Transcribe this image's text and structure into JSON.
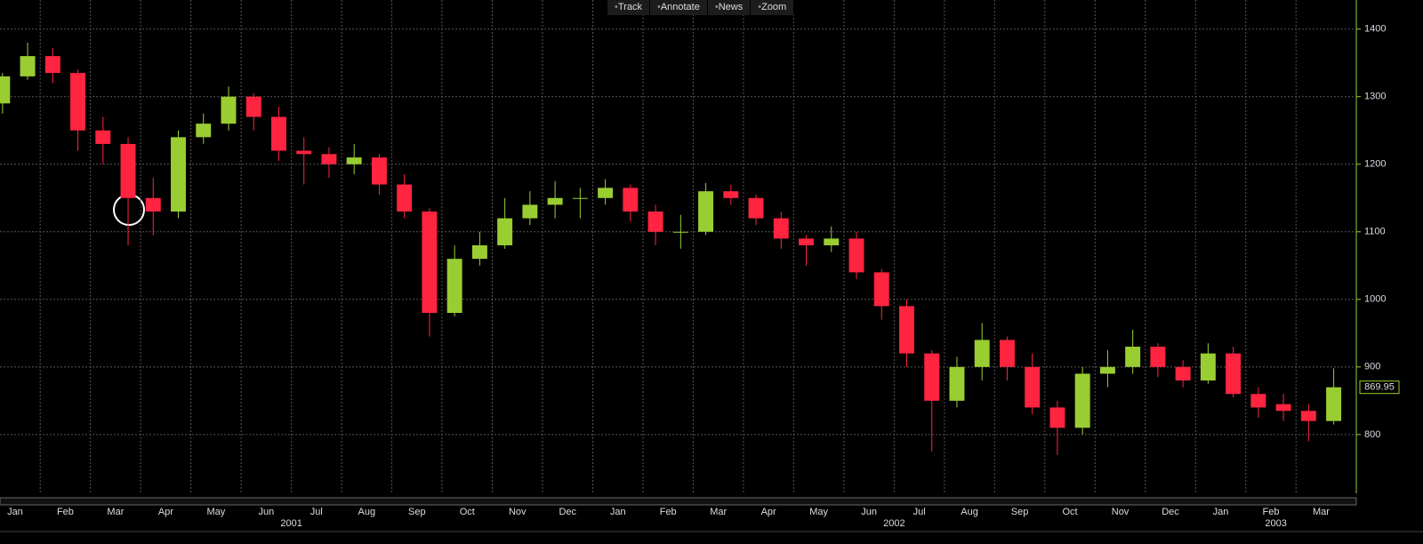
{
  "toolbar": [
    "Track",
    "Annotate",
    "News",
    "Zoom"
  ],
  "chart_data": {
    "type": "candlestick",
    "up_color": "#9acd32",
    "down_color": "#ff2440",
    "grid": true,
    "x": [
      0.25,
      0.75,
      1.25,
      1.75,
      2.25,
      2.75,
      3.25,
      3.75,
      4.25,
      4.75,
      5.25,
      5.75,
      6.25,
      6.75,
      7.25,
      7.75,
      8.25,
      8.75,
      9.25,
      9.75,
      10.25,
      10.75,
      11.25,
      11.75,
      12.25,
      12.75,
      13.25,
      13.75,
      14.25,
      14.75,
      15.25,
      15.75,
      16.25,
      16.75,
      17.25,
      17.75,
      18.25,
      18.75,
      19.25,
      19.75,
      20.25,
      20.75,
      21.25,
      21.75,
      22.25,
      22.75,
      23.25,
      23.75,
      24.25,
      24.75,
      25.25,
      25.75,
      26.25,
      26.75
    ],
    "open": [
      1290,
      1330,
      1360,
      1335,
      1250,
      1230,
      1150,
      1130,
      1240,
      1260,
      1300,
      1270,
      1220,
      1215,
      1200,
      1210,
      1170,
      1130,
      980,
      1060,
      1080,
      1120,
      1140,
      1150,
      1150,
      1165,
      1130,
      1100,
      1100,
      1160,
      1150,
      1120,
      1090,
      1080,
      1090,
      1040,
      990,
      920,
      850,
      900,
      940,
      900,
      840,
      810,
      890,
      900,
      930,
      900,
      880,
      920,
      860,
      845,
      835,
      820
    ],
    "high": [
      1335,
      1380,
      1372,
      1340,
      1270,
      1240,
      1180,
      1250,
      1275,
      1315,
      1305,
      1285,
      1240,
      1225,
      1230,
      1215,
      1185,
      1135,
      1080,
      1100,
      1150,
      1160,
      1175,
      1165,
      1178,
      1170,
      1140,
      1125,
      1172,
      1170,
      1155,
      1130,
      1095,
      1108,
      1100,
      1045,
      1000,
      925,
      915,
      965,
      945,
      920,
      850,
      900,
      925,
      955,
      935,
      910,
      935,
      930,
      870,
      860,
      845,
      898
    ],
    "low": [
      1275,
      1325,
      1320,
      1220,
      1200,
      1080,
      1095,
      1120,
      1230,
      1250,
      1250,
      1205,
      1170,
      1180,
      1185,
      1155,
      1120,
      945,
      975,
      1050,
      1075,
      1110,
      1120,
      1120,
      1140,
      1115,
      1080,
      1075,
      1095,
      1140,
      1110,
      1075,
      1050,
      1070,
      1030,
      970,
      900,
      775,
      840,
      880,
      880,
      830,
      770,
      800,
      870,
      890,
      885,
      870,
      875,
      855,
      825,
      820,
      790,
      815
    ],
    "close": [
      1330,
      1360,
      1335,
      1250,
      1230,
      1150,
      1130,
      1240,
      1260,
      1300,
      1270,
      1220,
      1215,
      1200,
      1210,
      1170,
      1130,
      980,
      1060,
      1080,
      1120,
      1140,
      1150,
      1150,
      1165,
      1130,
      1100,
      1100,
      1160,
      1150,
      1120,
      1090,
      1080,
      1090,
      1040,
      990,
      920,
      850,
      900,
      940,
      900,
      840,
      810,
      890,
      900,
      930,
      900,
      880,
      920,
      860,
      840,
      835,
      820,
      869.95
    ],
    "xlim": [
      0.2,
      27.2
    ],
    "xticks": [
      {
        "value": 0,
        "label": "Jan"
      },
      {
        "value": 1,
        "label": "Feb"
      },
      {
        "value": 2,
        "label": "Mar"
      },
      {
        "value": 3,
        "label": "Apr"
      },
      {
        "value": 4,
        "label": "May"
      },
      {
        "value": 5,
        "label": "Jun"
      },
      {
        "value": 6,
        "label": "Jul"
      },
      {
        "value": 7,
        "label": "Aug"
      },
      {
        "value": 8,
        "label": "Sep"
      },
      {
        "value": 9,
        "label": "Oct"
      },
      {
        "value": 10,
        "label": "Nov"
      },
      {
        "value": 11,
        "label": "Dec"
      },
      {
        "value": 12,
        "label": "Jan"
      },
      {
        "value": 13,
        "label": "Feb"
      },
      {
        "value": 14,
        "label": "Mar"
      },
      {
        "value": 15,
        "label": "Apr"
      },
      {
        "value": 16,
        "label": "May"
      },
      {
        "value": 17,
        "label": "Jun"
      },
      {
        "value": 18,
        "label": "Jul"
      },
      {
        "value": 19,
        "label": "Aug"
      },
      {
        "value": 20,
        "label": "Sep"
      },
      {
        "value": 21,
        "label": "Oct"
      },
      {
        "value": 22,
        "label": "Nov"
      },
      {
        "value": 23,
        "label": "Dec"
      },
      {
        "value": 24,
        "label": "Jan"
      },
      {
        "value": 25,
        "label": "Feb"
      },
      {
        "value": 26,
        "label": "Mar"
      }
    ],
    "year_labels": [
      {
        "value": 6,
        "label": "2001"
      },
      {
        "value": 18,
        "label": "2002"
      },
      {
        "value": 25.6,
        "label": "2003"
      }
    ],
    "ylim": [
      713,
      1443
    ],
    "yticks": [
      800,
      900,
      1000,
      1100,
      1200,
      1300,
      1400
    ]
  }
}
